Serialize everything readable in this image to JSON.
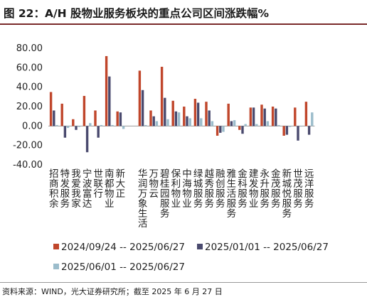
{
  "title": "图 22：A/H 股物业服务板块的重点公司区间涨跌幅%",
  "source": "资料来源：WIND，光大证券研究所；截至 2025 年 6 月 27 日",
  "colors": {
    "s1": "#c0462b",
    "s2": "#4a4a6e",
    "s3": "#9bbccb",
    "title_rule": "#7a2a2a"
  },
  "chart_data": {
    "type": "bar",
    "ylim": [
      -40,
      80
    ],
    "yticks": [
      "80.00",
      "60.00",
      "40.00",
      "20.00",
      "0.00",
      "-20.00",
      "-40.00"
    ],
    "ytick_values": [
      80,
      60,
      40,
      20,
      0,
      -20,
      -40
    ],
    "grid": false,
    "legend_position": "bottom",
    "categories": [
      "招商积余",
      "特发服务",
      "我爱我家",
      "宁波富达",
      "世联行",
      "南都物业",
      "新大正",
      "",
      "华润万象生活",
      "万物云",
      "碧桂园服务",
      "保利物业",
      "中海物业",
      "绿城服务",
      "越秀服务",
      "融创服务",
      "雅生活服务",
      "金科服务",
      "建发物业",
      "永升服务",
      "金茂服务",
      "新城悦服务",
      "世茂服务",
      "远洋服务"
    ],
    "series": [
      {
        "name": "2024/09/24 -- 2025/06/27",
        "values": [
          35,
          23,
          7,
          31,
          16,
          72,
          15,
          null,
          57,
          16,
          61,
          26,
          20,
          28,
          25,
          -10,
          23,
          -4,
          19,
          22,
          20,
          -10,
          19,
          25
        ]
      },
      {
        "name": "2025/01/01 -- 2025/06/27",
        "values": [
          16,
          -12,
          -4,
          -27,
          -12,
          51,
          14,
          null,
          37,
          10,
          29,
          15,
          10,
          24,
          16,
          -7,
          5,
          -8,
          19,
          18,
          18,
          -9,
          -15,
          -9
        ]
      },
      {
        "name": "2025/06/01 -- 2025/06/27",
        "values": [
          1,
          -2,
          -1,
          3,
          1,
          1,
          -3,
          null,
          1,
          5,
          7,
          14,
          8,
          8,
          5,
          -6,
          6,
          2,
          2,
          5,
          1,
          -1,
          0,
          14
        ]
      }
    ]
  }
}
